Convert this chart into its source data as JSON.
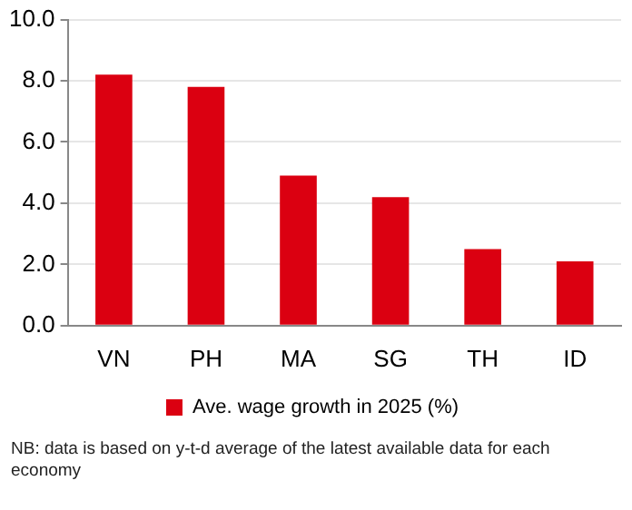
{
  "chart_data": {
    "type": "bar",
    "categories": [
      "VN",
      "PH",
      "MA",
      "SG",
      "TH",
      "ID"
    ],
    "series": [
      {
        "name": "Ave. wage growth in 2025 (%)",
        "color": "#db0011",
        "values": [
          8.2,
          7.8,
          4.9,
          4.2,
          2.5,
          2.1
        ]
      }
    ],
    "ylim": [
      0,
      10
    ],
    "yticks": [
      {
        "value": 0,
        "label": "0.0"
      },
      {
        "value": 2,
        "label": "2.0"
      },
      {
        "value": 4,
        "label": "4.0"
      },
      {
        "value": 6,
        "label": "6.0"
      },
      {
        "value": 8,
        "label": "8.0"
      },
      {
        "value": 10,
        "label": "10.0"
      }
    ],
    "grid": "y",
    "legend": "bottom",
    "annotations": [
      "NB: data is based on y-t-d average of the latest available data for each economy"
    ]
  }
}
